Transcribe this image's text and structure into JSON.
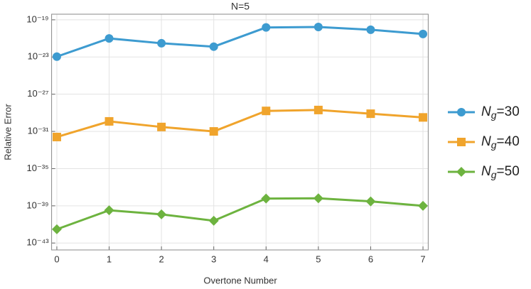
{
  "chart_data": {
    "type": "line",
    "title": "N=5",
    "xlabel": "Overtone Number",
    "ylabel": "Relative Error",
    "x": [
      0,
      1,
      2,
      3,
      4,
      5,
      6,
      7
    ],
    "xlim": [
      -0.1,
      7.1
    ],
    "xticks": [
      0,
      1,
      2,
      3,
      4,
      5,
      6,
      7
    ],
    "ylim": [
      1.8e-44,
      4e-19
    ],
    "yscale": "log",
    "yticks": [
      {
        "value": 1e-43,
        "label": "10⁻⁴³"
      },
      {
        "value": 1e-39,
        "label": "10⁻³⁹"
      },
      {
        "value": 1e-35,
        "label": "10⁻³⁵"
      },
      {
        "value": 1e-31,
        "label": "10⁻³¹"
      },
      {
        "value": 1e-27,
        "label": "10⁻²⁷"
      },
      {
        "value": 1e-23,
        "label": "10⁻²³"
      },
      {
        "value": 1e-19,
        "label": "10⁻¹⁹"
      }
    ],
    "grid": true,
    "legend": "right",
    "series": [
      {
        "name": "Ng=30",
        "color": "#3d9bd0",
        "marker": "circle",
        "values": [
          1.1e-23,
          1e-21,
          3e-22,
          1.3e-22,
          1.5e-20,
          1.7e-20,
          8.5e-21,
          3e-21
        ]
      },
      {
        "name": "Ng=40",
        "color": "#f0a42c",
        "marker": "square",
        "values": [
          2.5e-32,
          1.2e-30,
          3e-31,
          1e-31,
          1.6e-29,
          2e-29,
          8e-30,
          3.2e-30
        ]
      },
      {
        "name": "Ng=50",
        "color": "#6db33f",
        "marker": "diamond",
        "values": [
          3e-42,
          3.3e-40,
          1.2e-40,
          2.5e-41,
          6e-39,
          6.5e-39,
          3e-39,
          1e-39
        ]
      }
    ]
  }
}
